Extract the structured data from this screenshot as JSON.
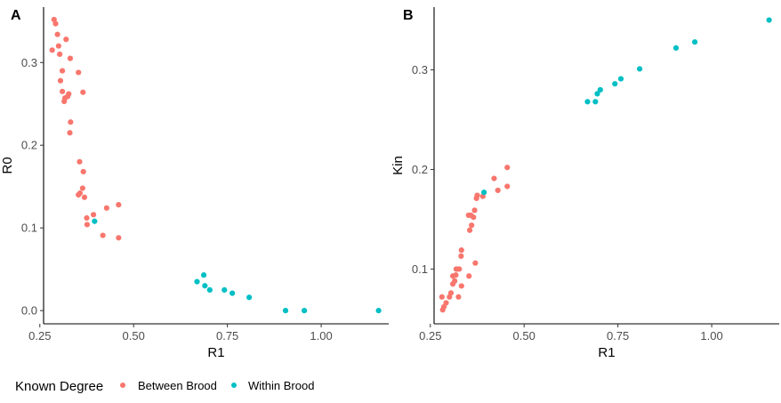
{
  "legend": {
    "title": "Known Degree",
    "items": [
      {
        "label": "Between Brood",
        "color": "#F8766D"
      },
      {
        "label": "Within Brood",
        "color": "#00BFC4"
      }
    ]
  },
  "chart_data": [
    {
      "type": "scatter",
      "panel_label": "A",
      "xlabel": "R1",
      "ylabel": "R0",
      "xlim": [
        0.26,
        1.18
      ],
      "ylim": [
        -0.016,
        0.367
      ],
      "xticks": [
        0.25,
        0.5,
        0.75,
        1.0
      ],
      "xtick_labels": [
        "0.25",
        "0.50",
        "0.75",
        "1.00"
      ],
      "yticks": [
        0.0,
        0.1,
        0.2,
        0.3
      ],
      "ytick_labels": [
        "0.0",
        "0.1",
        "0.2",
        "0.3"
      ],
      "grid": false,
      "series": [
        {
          "name": "Between Brood",
          "color": "#F8766D",
          "points": [
            [
              0.288,
              0.352
            ],
            [
              0.292,
              0.347
            ],
            [
              0.297,
              0.334
            ],
            [
              0.32,
              0.328
            ],
            [
              0.3,
              0.32
            ],
            [
              0.283,
              0.315
            ],
            [
              0.303,
              0.31
            ],
            [
              0.331,
              0.305
            ],
            [
              0.31,
              0.29
            ],
            [
              0.353,
              0.288
            ],
            [
              0.305,
              0.278
            ],
            [
              0.31,
              0.265
            ],
            [
              0.365,
              0.264
            ],
            [
              0.327,
              0.262
            ],
            [
              0.324,
              0.259
            ],
            [
              0.317,
              0.257
            ],
            [
              0.315,
              0.253
            ],
            [
              0.332,
              0.228
            ],
            [
              0.33,
              0.215
            ],
            [
              0.356,
              0.18
            ],
            [
              0.366,
              0.168
            ],
            [
              0.364,
              0.148
            ],
            [
              0.357,
              0.142
            ],
            [
              0.353,
              0.14
            ],
            [
              0.369,
              0.137
            ],
            [
              0.428,
              0.124
            ],
            [
              0.46,
              0.128
            ],
            [
              0.393,
              0.116
            ],
            [
              0.375,
              0.112
            ],
            [
              0.376,
              0.104
            ],
            [
              0.418,
              0.091
            ],
            [
              0.46,
              0.088
            ]
          ]
        },
        {
          "name": "Within Brood",
          "color": "#00BFC4",
          "points": [
            [
              0.396,
              0.108
            ],
            [
              0.669,
              0.035
            ],
            [
              0.687,
              0.043
            ],
            [
              0.69,
              0.03
            ],
            [
              0.703,
              0.025
            ],
            [
              0.742,
              0.025
            ],
            [
              0.763,
              0.021
            ],
            [
              0.808,
              0.016
            ],
            [
              0.905,
              0.0
            ],
            [
              0.955,
              0.0
            ],
            [
              1.153,
              0.0
            ]
          ]
        }
      ]
    },
    {
      "type": "scatter",
      "panel_label": "B",
      "xlabel": "R1",
      "ylabel": "Kin",
      "xlim": [
        0.26,
        1.18
      ],
      "ylim": [
        0.045,
        0.363
      ],
      "xticks": [
        0.25,
        0.5,
        0.75,
        1.0
      ],
      "xtick_labels": [
        "0.25",
        "0.50",
        "0.75",
        "1.00"
      ],
      "yticks": [
        0.1,
        0.2,
        0.3
      ],
      "ytick_labels": [
        "0.1",
        "0.2",
        "0.3"
      ],
      "grid": false,
      "series": [
        {
          "name": "Between Brood",
          "color": "#F8766D",
          "points": [
            [
              0.283,
              0.059
            ],
            [
              0.286,
              0.062
            ],
            [
              0.292,
              0.066
            ],
            [
              0.281,
              0.072
            ],
            [
              0.301,
              0.072
            ],
            [
              0.305,
              0.076
            ],
            [
              0.325,
              0.072
            ],
            [
              0.31,
              0.085
            ],
            [
              0.315,
              0.088
            ],
            [
              0.31,
              0.093
            ],
            [
              0.319,
              0.1
            ],
            [
              0.322,
              0.1
            ],
            [
              0.327,
              0.1
            ],
            [
              0.318,
              0.094
            ],
            [
              0.333,
              0.083
            ],
            [
              0.332,
              0.113
            ],
            [
              0.333,
              0.119
            ],
            [
              0.353,
              0.093
            ],
            [
              0.37,
              0.106
            ],
            [
              0.355,
              0.139
            ],
            [
              0.36,
              0.144
            ],
            [
              0.352,
              0.154
            ],
            [
              0.358,
              0.154
            ],
            [
              0.365,
              0.152
            ],
            [
              0.368,
              0.159
            ],
            [
              0.373,
              0.171
            ],
            [
              0.375,
              0.174
            ],
            [
              0.39,
              0.173
            ],
            [
              0.42,
              0.191
            ],
            [
              0.43,
              0.179
            ],
            [
              0.455,
              0.202
            ],
            [
              0.455,
              0.183
            ]
          ]
        },
        {
          "name": "Within Brood",
          "color": "#00BFC4",
          "points": [
            [
              0.393,
              0.177
            ],
            [
              0.669,
              0.268
            ],
            [
              0.69,
              0.268
            ],
            [
              0.695,
              0.276
            ],
            [
              0.703,
              0.28
            ],
            [
              0.742,
              0.286
            ],
            [
              0.758,
              0.291
            ],
            [
              0.808,
              0.301
            ],
            [
              0.905,
              0.322
            ],
            [
              0.955,
              0.328
            ],
            [
              1.153,
              0.35
            ]
          ]
        }
      ]
    }
  ]
}
